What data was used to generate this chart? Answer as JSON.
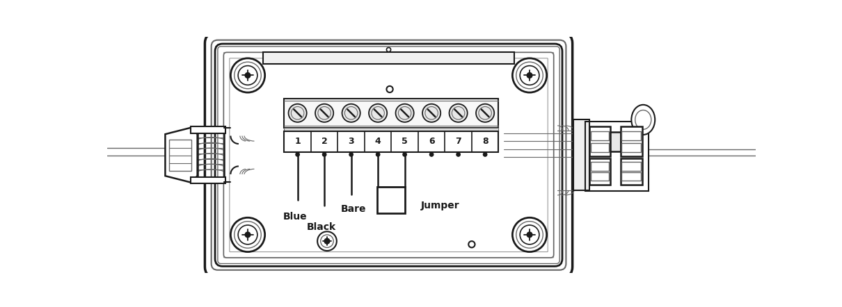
{
  "bg_color": "#ffffff",
  "lc": "#1a1a1a",
  "lc_gray": "#666666",
  "lc_lgray": "#999999",
  "figsize": [
    12.1,
    4.42
  ],
  "dpi": 100,
  "term_labels": [
    "1",
    "2",
    "3",
    "4",
    "5",
    "6",
    "7",
    "8"
  ],
  "wire_labels": [
    "Blue",
    "Black",
    "Bare",
    "Jumper"
  ]
}
